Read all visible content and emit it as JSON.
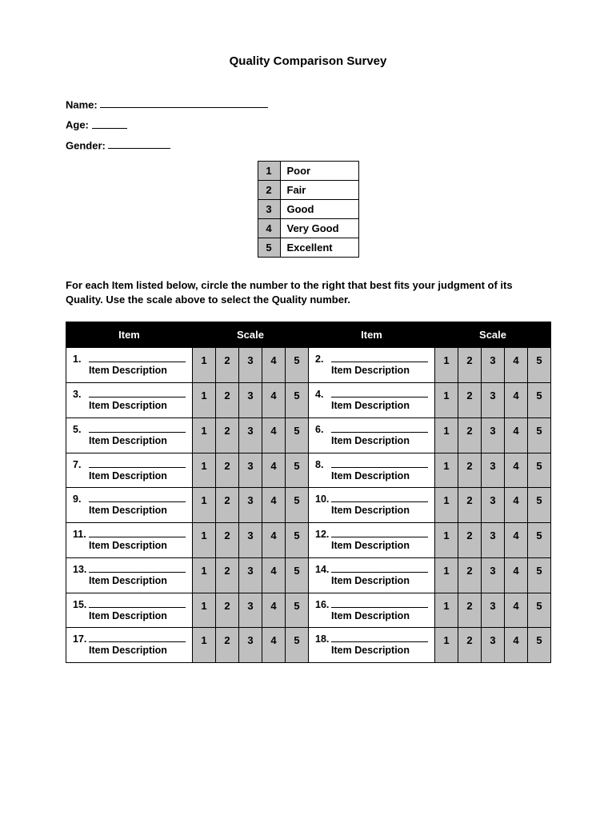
{
  "title": "Quality Comparison Survey",
  "fields": {
    "name_label": "Name:",
    "name_line_width": 210,
    "age_label": "Age:",
    "age_line_width": 44,
    "gender_label": "Gender:",
    "gender_line_width": 78
  },
  "legend": {
    "rows": [
      {
        "num": "1",
        "label": "Poor"
      },
      {
        "num": "2",
        "label": "Fair"
      },
      {
        "num": "3",
        "label": "Good"
      },
      {
        "num": "4",
        "label": "Very Good"
      },
      {
        "num": "5",
        "label": "Excellent"
      }
    ]
  },
  "instructions": "For each Item listed below, circle the number to the right that best fits your judgment of its Quality.  Use the scale above to select the Quality number.",
  "table": {
    "headers": {
      "item": "Item",
      "scale": "Scale"
    },
    "scale_values": [
      "1",
      "2",
      "3",
      "4",
      "5"
    ],
    "item_description": "Item Description",
    "rows": [
      {
        "left_num": "1.",
        "right_num": "2."
      },
      {
        "left_num": "3.",
        "right_num": "4."
      },
      {
        "left_num": "5.",
        "right_num": "6."
      },
      {
        "left_num": "7.",
        "right_num": "8."
      },
      {
        "left_num": "9.",
        "right_num": "10."
      },
      {
        "left_num": "11.",
        "right_num": "12."
      },
      {
        "left_num": "13.",
        "right_num": "14."
      },
      {
        "left_num": "15.",
        "right_num": "16."
      },
      {
        "left_num": "17.",
        "right_num": "18."
      }
    ]
  },
  "colors": {
    "header_bg": "#000000",
    "header_fg": "#ffffff",
    "shaded_bg": "#bfbfbf",
    "border": "#000000",
    "page_bg": "#ffffff",
    "text": "#000000"
  }
}
